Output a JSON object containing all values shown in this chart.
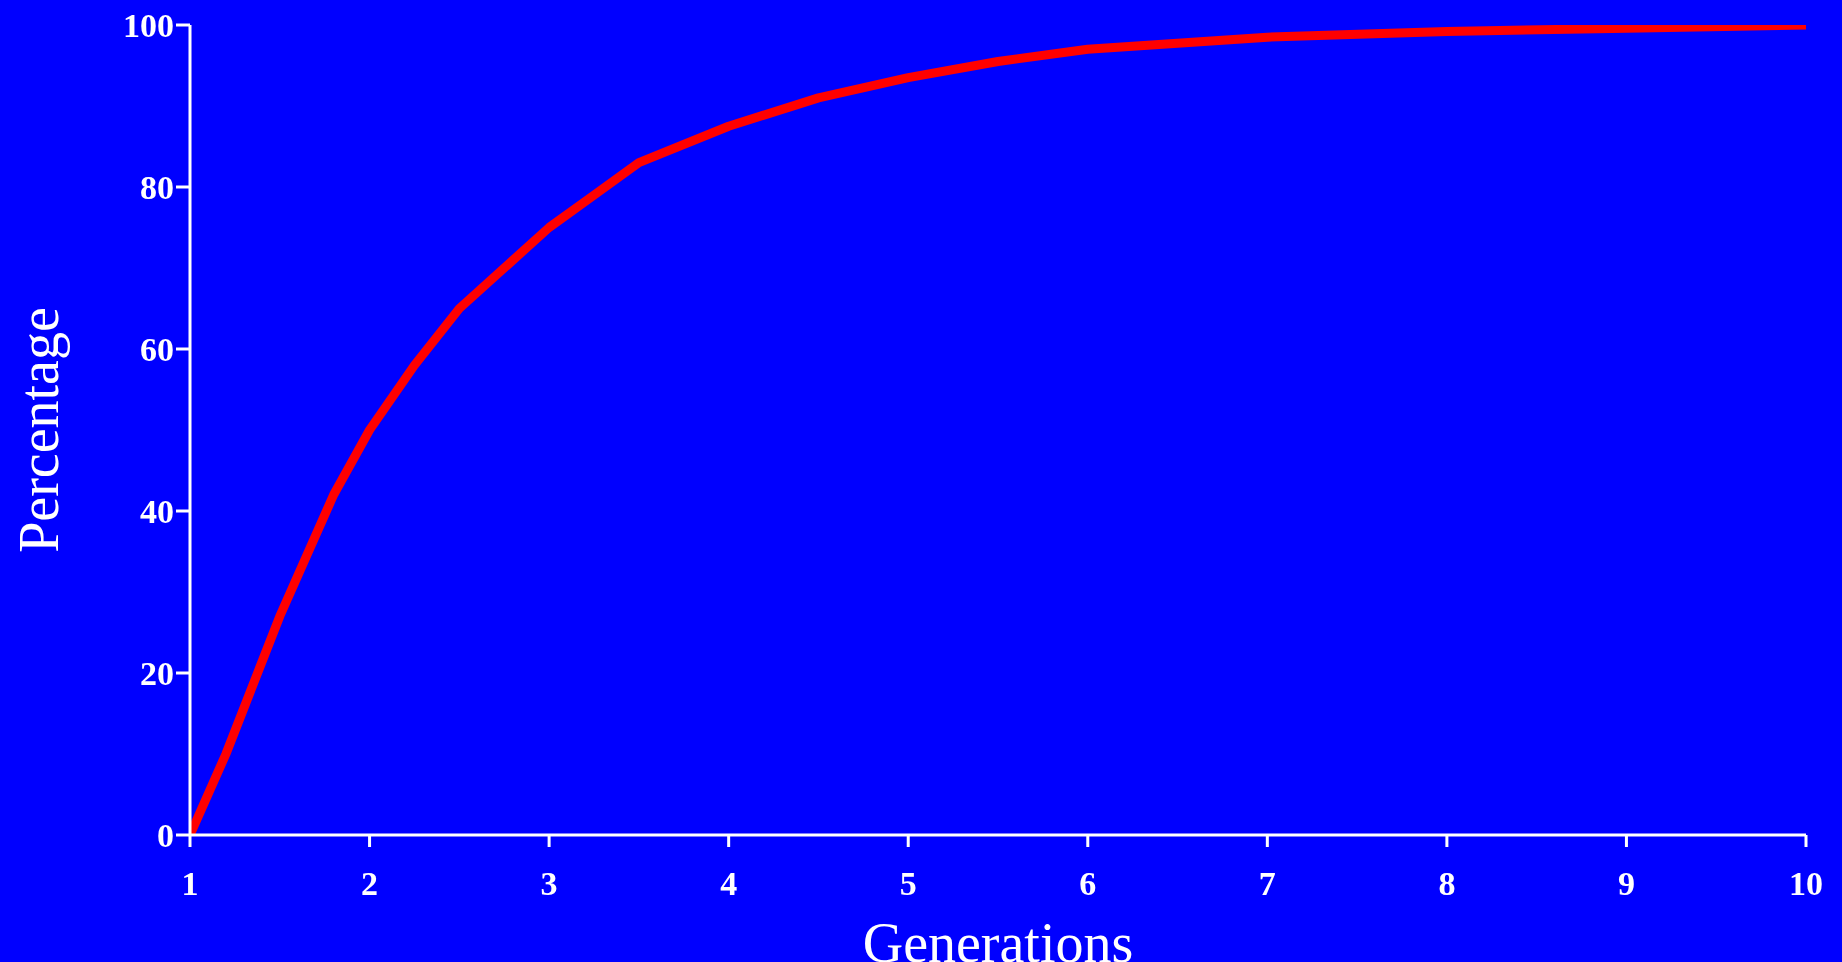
{
  "chart_data": {
    "type": "line",
    "xlabel": "Generations",
    "ylabel": "Percentage",
    "xlim": [
      1,
      10
    ],
    "xticks": [
      1,
      2,
      3,
      4,
      5,
      6,
      7,
      8,
      9,
      10
    ],
    "ylim": [
      0,
      100
    ],
    "yticks": [
      0,
      20,
      40,
      60,
      80,
      100
    ],
    "grid": false,
    "legend": false,
    "marker": "none",
    "line_style": "solid",
    "series": [
      {
        "color": "#ff0000",
        "x": [
          1,
          1.2,
          1.5,
          1.8,
          2,
          2.25,
          2.5,
          3,
          3.25,
          3.5,
          4,
          4.5,
          5,
          5.5,
          6,
          7,
          8,
          9,
          10
        ],
        "values": [
          0,
          10,
          27,
          42,
          50,
          58,
          65,
          75,
          79,
          83,
          87.5,
          91,
          93.5,
          95.5,
          97,
          98.5,
          99.2,
          99.6,
          100
        ]
      }
    ]
  }
}
